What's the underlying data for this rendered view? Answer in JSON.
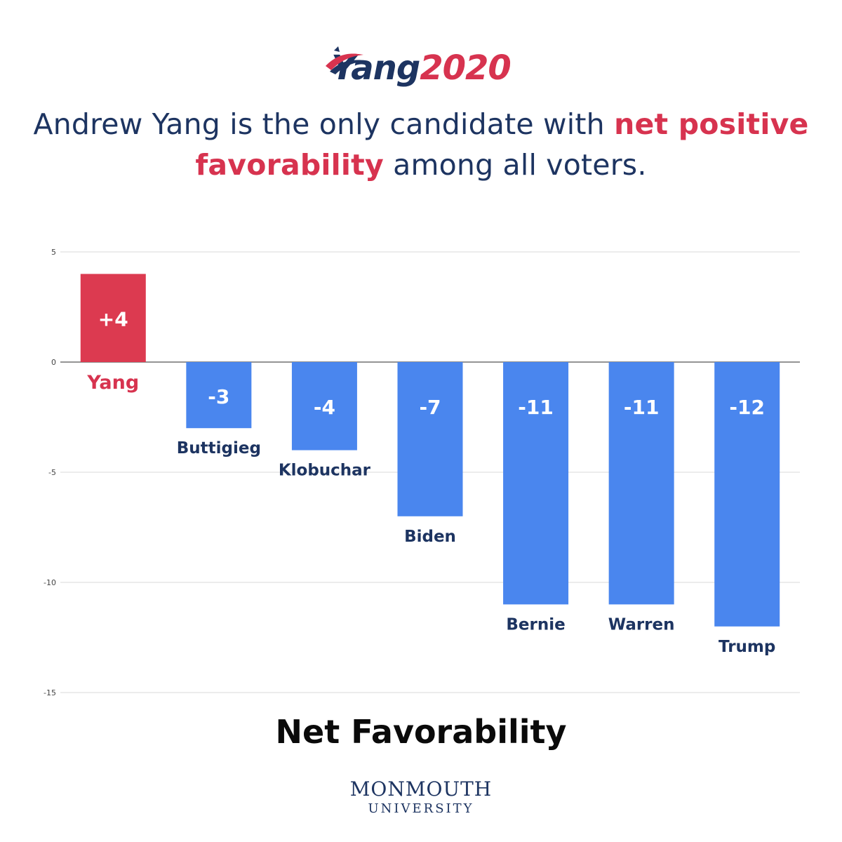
{
  "logo": {
    "word": "Yang",
    "year": "2020",
    "color_word": "#1d3461",
    "color_year": "#d7334f"
  },
  "headline": {
    "part1": "Andrew Yang is the only candidate with ",
    "highlight": "net positive favorability",
    "part2": " among all voters."
  },
  "chart_data": {
    "type": "bar",
    "title": "",
    "xlabel": "Net Favorability",
    "ylabel": "",
    "ylim": [
      -15,
      5
    ],
    "yticks": [
      5,
      0,
      -5,
      -10,
      -15
    ],
    "grid": true,
    "categories": [
      "Yang",
      "Buttigieg",
      "Klobuchar",
      "Biden",
      "Bernie",
      "Warren",
      "Trump"
    ],
    "values": [
      4,
      -3,
      -4,
      -7,
      -11,
      -11,
      -12
    ],
    "data_labels": [
      "+4",
      "-3",
      "-4",
      "-7",
      "-11",
      "-11",
      "-12"
    ],
    "colors": {
      "positive": "#dc3a50",
      "negative": "#4a86ee",
      "label_positive": "#d7334f",
      "label_negative": "#1d3461"
    }
  },
  "footer": {
    "name": "MONMOUTH",
    "sub": "UNIVERSITY"
  }
}
